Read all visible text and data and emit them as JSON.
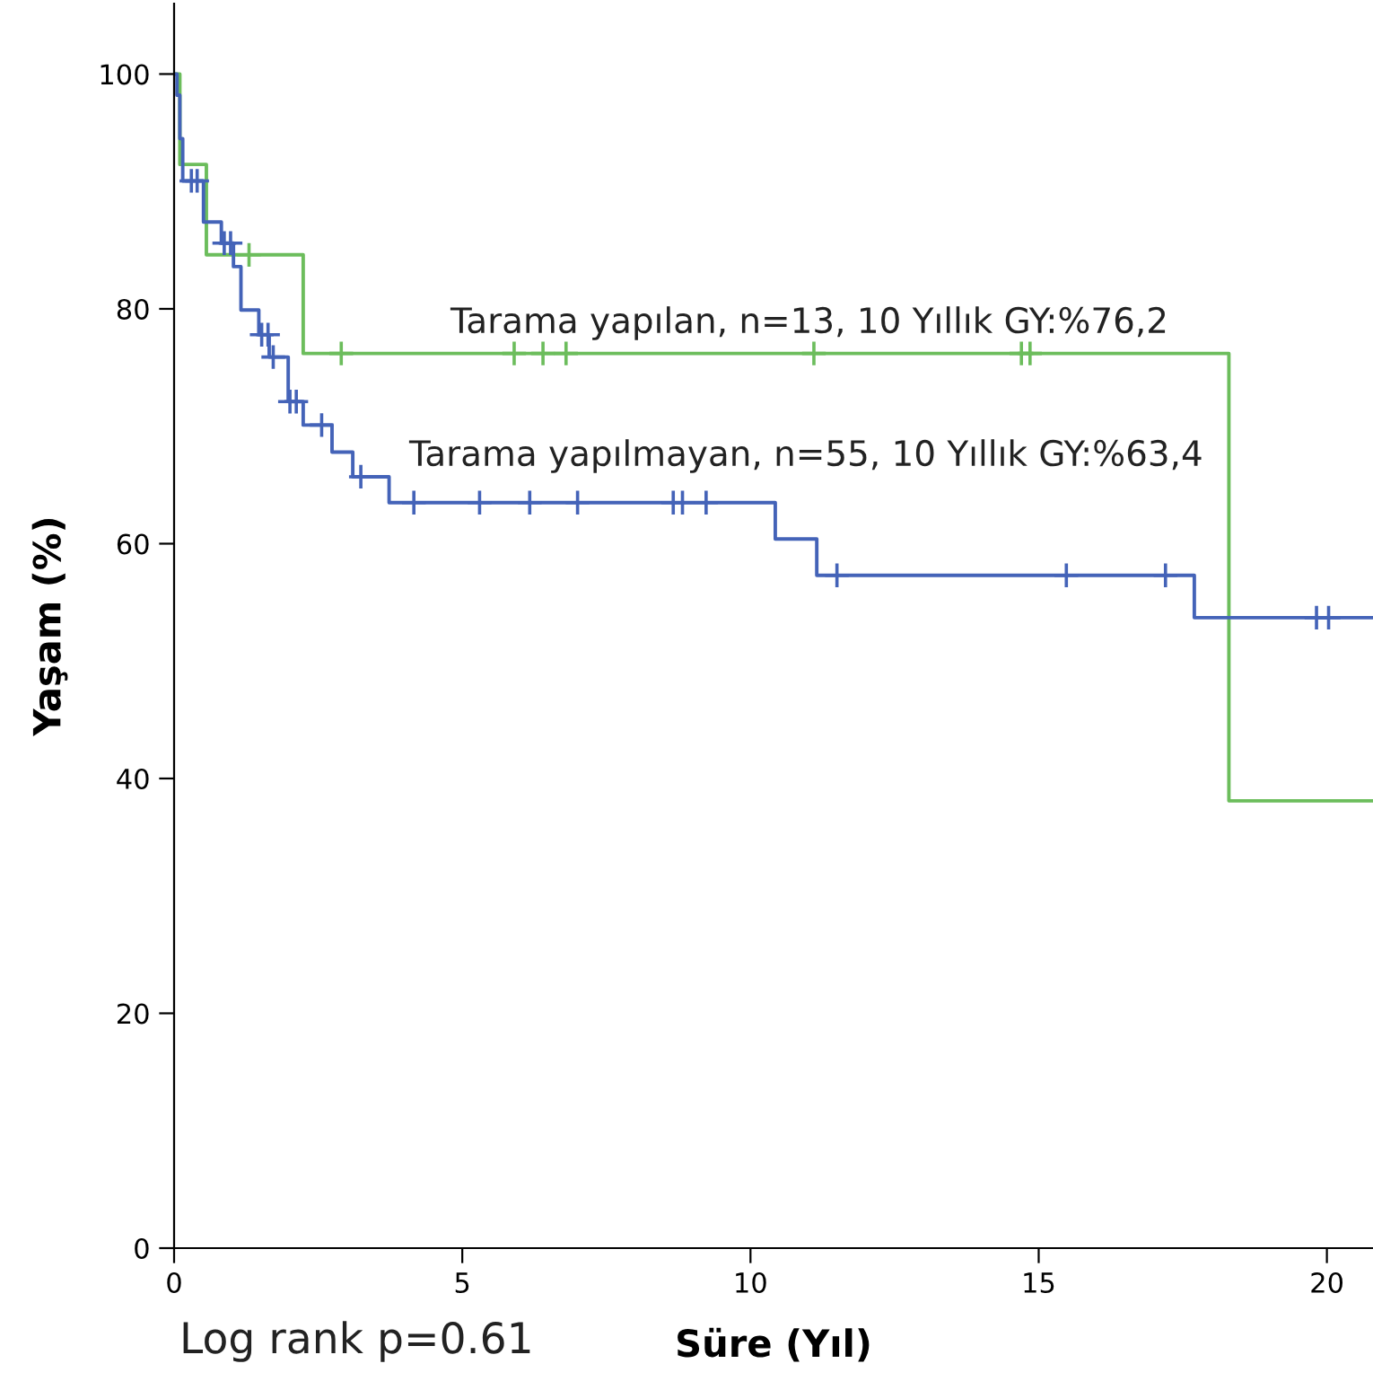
{
  "chart_data": {
    "type": "step",
    "xlabel": "Süre (Yıl)",
    "ylabel": "Yaşam (%)",
    "xlim": [
      0,
      20.8
    ],
    "xticks": [
      0,
      5,
      10,
      15,
      20
    ],
    "ylim": [
      0,
      106
    ],
    "yticks": [
      0,
      20,
      40,
      60,
      80,
      100
    ],
    "grid": false,
    "legend": false,
    "series": [
      {
        "color": "#6cbd5c",
        "x": [
          0,
          0.1,
          0.56,
          2.24,
          18.3,
          20.8
        ],
        "values": [
          100,
          92.3,
          84.6,
          76.2,
          38.1,
          38.1
        ]
      },
      {
        "color": "#4463b8",
        "x": [
          0,
          0.05,
          0.1,
          0.15,
          0.51,
          0.82,
          1.03,
          1.16,
          1.47,
          1.65,
          1.98,
          2.24,
          2.74,
          3.1,
          3.73,
          10.43,
          11.15,
          17.7,
          20.8
        ],
        "values": [
          100,
          98.2,
          94.5,
          90.9,
          87.4,
          85.6,
          83.6,
          79.9,
          77.8,
          75.9,
          72.1,
          70.1,
          67.8,
          65.7,
          63.5,
          60.4,
          57.3,
          53.7,
          53.7
        ]
      },
      {
        "type": "scatter",
        "marker": "cross",
        "color": "#6cbd5c",
        "x": [
          1.3,
          2.9,
          5.9,
          6.4,
          6.8,
          11.1,
          14.7,
          14.85
        ],
        "values": [
          84.6,
          76.2,
          76.2,
          76.2,
          76.2,
          76.2,
          76.2,
          76.2
        ]
      },
      {
        "type": "scatter",
        "marker": "cross",
        "color": "#4463b8",
        "x": [
          0.3,
          0.4,
          0.87,
          0.98,
          1.52,
          1.63,
          1.72,
          2.01,
          2.12,
          2.56,
          3.24,
          4.16,
          5.3,
          6.17,
          7.0,
          8.66,
          8.82,
          9.23,
          11.5,
          15.48,
          17.2,
          19.82,
          20.03
        ],
        "values": [
          90.9,
          90.9,
          85.6,
          85.6,
          77.8,
          77.8,
          75.9,
          72.1,
          72.1,
          70.1,
          65.7,
          63.5,
          63.5,
          63.5,
          63.5,
          63.5,
          63.5,
          63.5,
          57.3,
          57.3,
          57.3,
          53.7,
          53.7
        ]
      }
    ],
    "annotations": [
      "Tarama yapılan, n=13, 10 Yıllık GY:%76,2",
      "Tarama yapılmayan, n=55, 10 Yıllık GY:%63,4",
      "Log rank p=0.61"
    ]
  }
}
